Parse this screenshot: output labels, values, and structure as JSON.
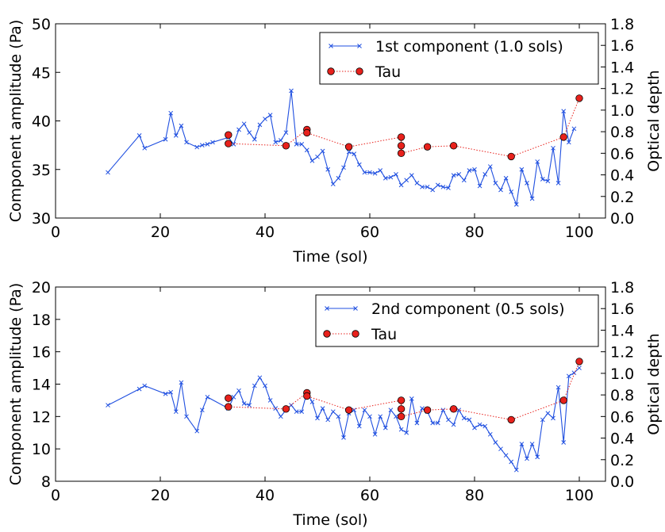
{
  "chart_data": [
    {
      "type": "line",
      "xlabel": "Time (sol)",
      "ylabel": "Component amplitude (Pa)",
      "y2label": "Optical depth",
      "xlim": [
        0,
        105
      ],
      "ylim": [
        30,
        50
      ],
      "y2lim": [
        0,
        1.8
      ],
      "x_ticks": [
        "0",
        "20",
        "40",
        "60",
        "80",
        "100"
      ],
      "y_ticks": [
        "30",
        "35",
        "40",
        "45",
        "50"
      ],
      "y2_ticks": [
        "0.0",
        "0.2",
        "0.4",
        "0.6",
        "0.8",
        "1.0",
        "1.2",
        "1.4",
        "1.6",
        "1.8"
      ],
      "legend_position": "top-right",
      "grid": false,
      "series": [
        {
          "name": "1st component (1.0 sols)",
          "axis": "left",
          "color": "#1f4fe0",
          "marker": "x",
          "line": "solid",
          "x": [
            10,
            16,
            17,
            21,
            22,
            23,
            24,
            25,
            27,
            28,
            29,
            30,
            33,
            34,
            35,
            36,
            37,
            38,
            39,
            40,
            41,
            42,
            43,
            44,
            45,
            46,
            47,
            48,
            49,
            50,
            51,
            52,
            53,
            54,
            55,
            56,
            57,
            58,
            59,
            60,
            61,
            62,
            63,
            64,
            65,
            66,
            67,
            68,
            69,
            70,
            71,
            72,
            73,
            74,
            75,
            76,
            77,
            78,
            79,
            80,
            81,
            82,
            83,
            84,
            85,
            86,
            87,
            88,
            89,
            90,
            91,
            92,
            93,
            94,
            95,
            96,
            97,
            98,
            99
          ],
          "y": [
            34.7,
            38.5,
            37.2,
            38.1,
            40.8,
            38.5,
            39.5,
            37.8,
            37.3,
            37.5,
            37.6,
            37.8,
            38.3,
            37.6,
            39.1,
            39.7,
            38.8,
            38.1,
            39.6,
            40.2,
            40.6,
            37.8,
            38.0,
            38.8,
            43.1,
            37.6,
            37.6,
            37.0,
            35.9,
            36.3,
            36.9,
            35.0,
            33.5,
            34.1,
            35.2,
            36.8,
            36.6,
            35.5,
            34.7,
            34.7,
            34.6,
            34.9,
            34.1,
            34.2,
            34.5,
            33.4,
            33.9,
            34.4,
            33.6,
            33.2,
            33.2,
            32.9,
            33.4,
            33.2,
            33.1,
            34.4,
            34.5,
            33.9,
            34.9,
            35.0,
            33.3,
            34.5,
            35.3,
            33.6,
            32.9,
            34.1,
            32.7,
            31.4,
            35.0,
            33.6,
            32.0,
            35.8,
            34.0,
            33.8,
            37.2,
            33.6,
            41.0,
            37.8,
            39.2
          ]
        },
        {
          "name": "Tau",
          "axis": "right",
          "color": "#e8211c",
          "marker": "o",
          "line": "dotted",
          "x": [
            33,
            33,
            44,
            48,
            48,
            56,
            66,
            66,
            66,
            71,
            76,
            87,
            97,
            100
          ],
          "y": [
            0.77,
            0.69,
            0.67,
            0.82,
            0.79,
            0.66,
            0.75,
            0.67,
            0.6,
            0.66,
            0.67,
            0.57,
            0.75,
            1.11
          ]
        }
      ]
    },
    {
      "type": "line",
      "xlabel": "Time (sol)",
      "ylabel": "Component amplitude (Pa)",
      "y2label": "Optical depth",
      "xlim": [
        0,
        105
      ],
      "ylim": [
        8,
        20
      ],
      "y2lim": [
        0,
        1.8
      ],
      "x_ticks": [
        "0",
        "20",
        "40",
        "60",
        "80",
        "100"
      ],
      "y_ticks": [
        "8",
        "10",
        "12",
        "14",
        "16",
        "18",
        "20"
      ],
      "y2_ticks": [
        "0.0",
        "0.2",
        "0.4",
        "0.6",
        "0.8",
        "1.0",
        "1.2",
        "1.4",
        "1.6",
        "1.8"
      ],
      "legend_position": "top-right",
      "grid": false,
      "series": [
        {
          "name": "2nd component (0.5 sols)",
          "axis": "left",
          "color": "#1f4fe0",
          "marker": "x",
          "line": "solid",
          "x": [
            10,
            16,
            17,
            21,
            22,
            23,
            24,
            25,
            27,
            28,
            29,
            33,
            34,
            35,
            36,
            37,
            38,
            39,
            40,
            41,
            42,
            43,
            44,
            45,
            46,
            47,
            48,
            49,
            50,
            51,
            52,
            53,
            54,
            55,
            56,
            57,
            58,
            59,
            60,
            61,
            62,
            63,
            64,
            65,
            66,
            67,
            68,
            69,
            70,
            71,
            72,
            73,
            74,
            75,
            76,
            77,
            78,
            79,
            80,
            81,
            82,
            83,
            84,
            85,
            86,
            87,
            88,
            89,
            90,
            91,
            92,
            93,
            94,
            95,
            96,
            97,
            98,
            99,
            100
          ],
          "y": [
            12.7,
            13.7,
            13.9,
            13.4,
            13.5,
            12.3,
            14.1,
            12.0,
            11.1,
            12.4,
            13.2,
            12.5,
            13.2,
            13.6,
            12.8,
            12.7,
            13.9,
            14.4,
            13.9,
            13.0,
            12.5,
            12.0,
            12.4,
            12.7,
            12.3,
            12.3,
            13.5,
            12.9,
            11.9,
            12.5,
            11.8,
            12.3,
            12.0,
            10.7,
            12.2,
            12.4,
            11.4,
            12.4,
            12.0,
            10.9,
            12.0,
            11.3,
            12.4,
            12.0,
            11.2,
            11.0,
            13.1,
            11.6,
            12.5,
            12.3,
            11.6,
            11.6,
            12.4,
            11.8,
            11.5,
            12.4,
            11.9,
            11.8,
            11.3,
            11.5,
            11.4,
            10.9,
            10.4,
            10.0,
            9.6,
            9.2,
            8.7,
            10.3,
            9.4,
            10.3,
            9.5,
            11.8,
            12.2,
            11.9,
            13.8,
            10.4,
            14.5,
            14.7,
            15.0
          ]
        },
        {
          "name": "Tau",
          "axis": "right",
          "color": "#e8211c",
          "marker": "o",
          "line": "dotted",
          "x": [
            33,
            33,
            44,
            48,
            48,
            56,
            66,
            66,
            66,
            71,
            76,
            87,
            97,
            100
          ],
          "y": [
            0.77,
            0.69,
            0.67,
            0.82,
            0.79,
            0.66,
            0.75,
            0.67,
            0.6,
            0.66,
            0.67,
            0.57,
            0.75,
            1.11
          ]
        }
      ]
    }
  ]
}
